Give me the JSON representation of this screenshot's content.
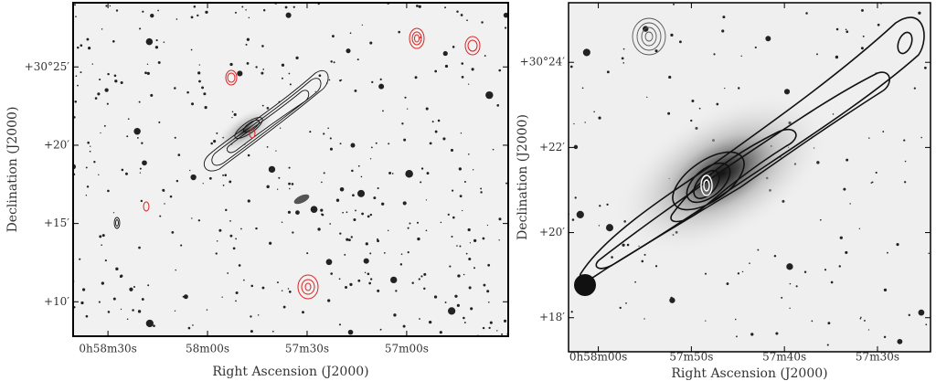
{
  "chart_data": [
    {
      "type": "image",
      "xlabel": "Right Ascension (J2000)",
      "ylabel": "Declination (J2000)",
      "xlim": [
        3520.5,
        3389.4
      ],
      "ylim": [
        1807.8,
        1829.1
      ],
      "xticks": [
        {
          "value": 3510,
          "label": "0h58m30s"
        },
        {
          "value": 3480,
          "label": "58m00s"
        },
        {
          "value": 3450,
          "label": "57m30s"
        },
        {
          "value": 3420,
          "label": "57m00s"
        }
      ],
      "yticks": [
        {
          "value": 1825,
          "label": "+30°25′"
        },
        {
          "value": 1820,
          "label": "+20′"
        },
        {
          "value": 1815,
          "label": "+15′"
        },
        {
          "value": 1810,
          "label": "+10′"
        }
      ]
    },
    {
      "type": "image",
      "xlabel": "Right Ascension (J2000)",
      "ylabel": "Declination (J2000)",
      "xlim": [
        3483.2,
        3444.3
      ],
      "ylim": [
        1817.2,
        1825.4
      ],
      "xticks": [
        {
          "value": 3480,
          "label": "0h58m00s"
        },
        {
          "value": 3470,
          "label": "57m50s"
        },
        {
          "value": 3460,
          "label": "57m40s"
        },
        {
          "value": 3450,
          "label": "57m30s"
        }
      ],
      "yticks": [
        {
          "value": 1824,
          "label": "+30°24′"
        },
        {
          "value": 1822,
          "label": "+22′"
        },
        {
          "value": 1820,
          "label": "+20′"
        },
        {
          "value": 1818,
          "label": "+18′"
        }
      ]
    }
  ]
}
